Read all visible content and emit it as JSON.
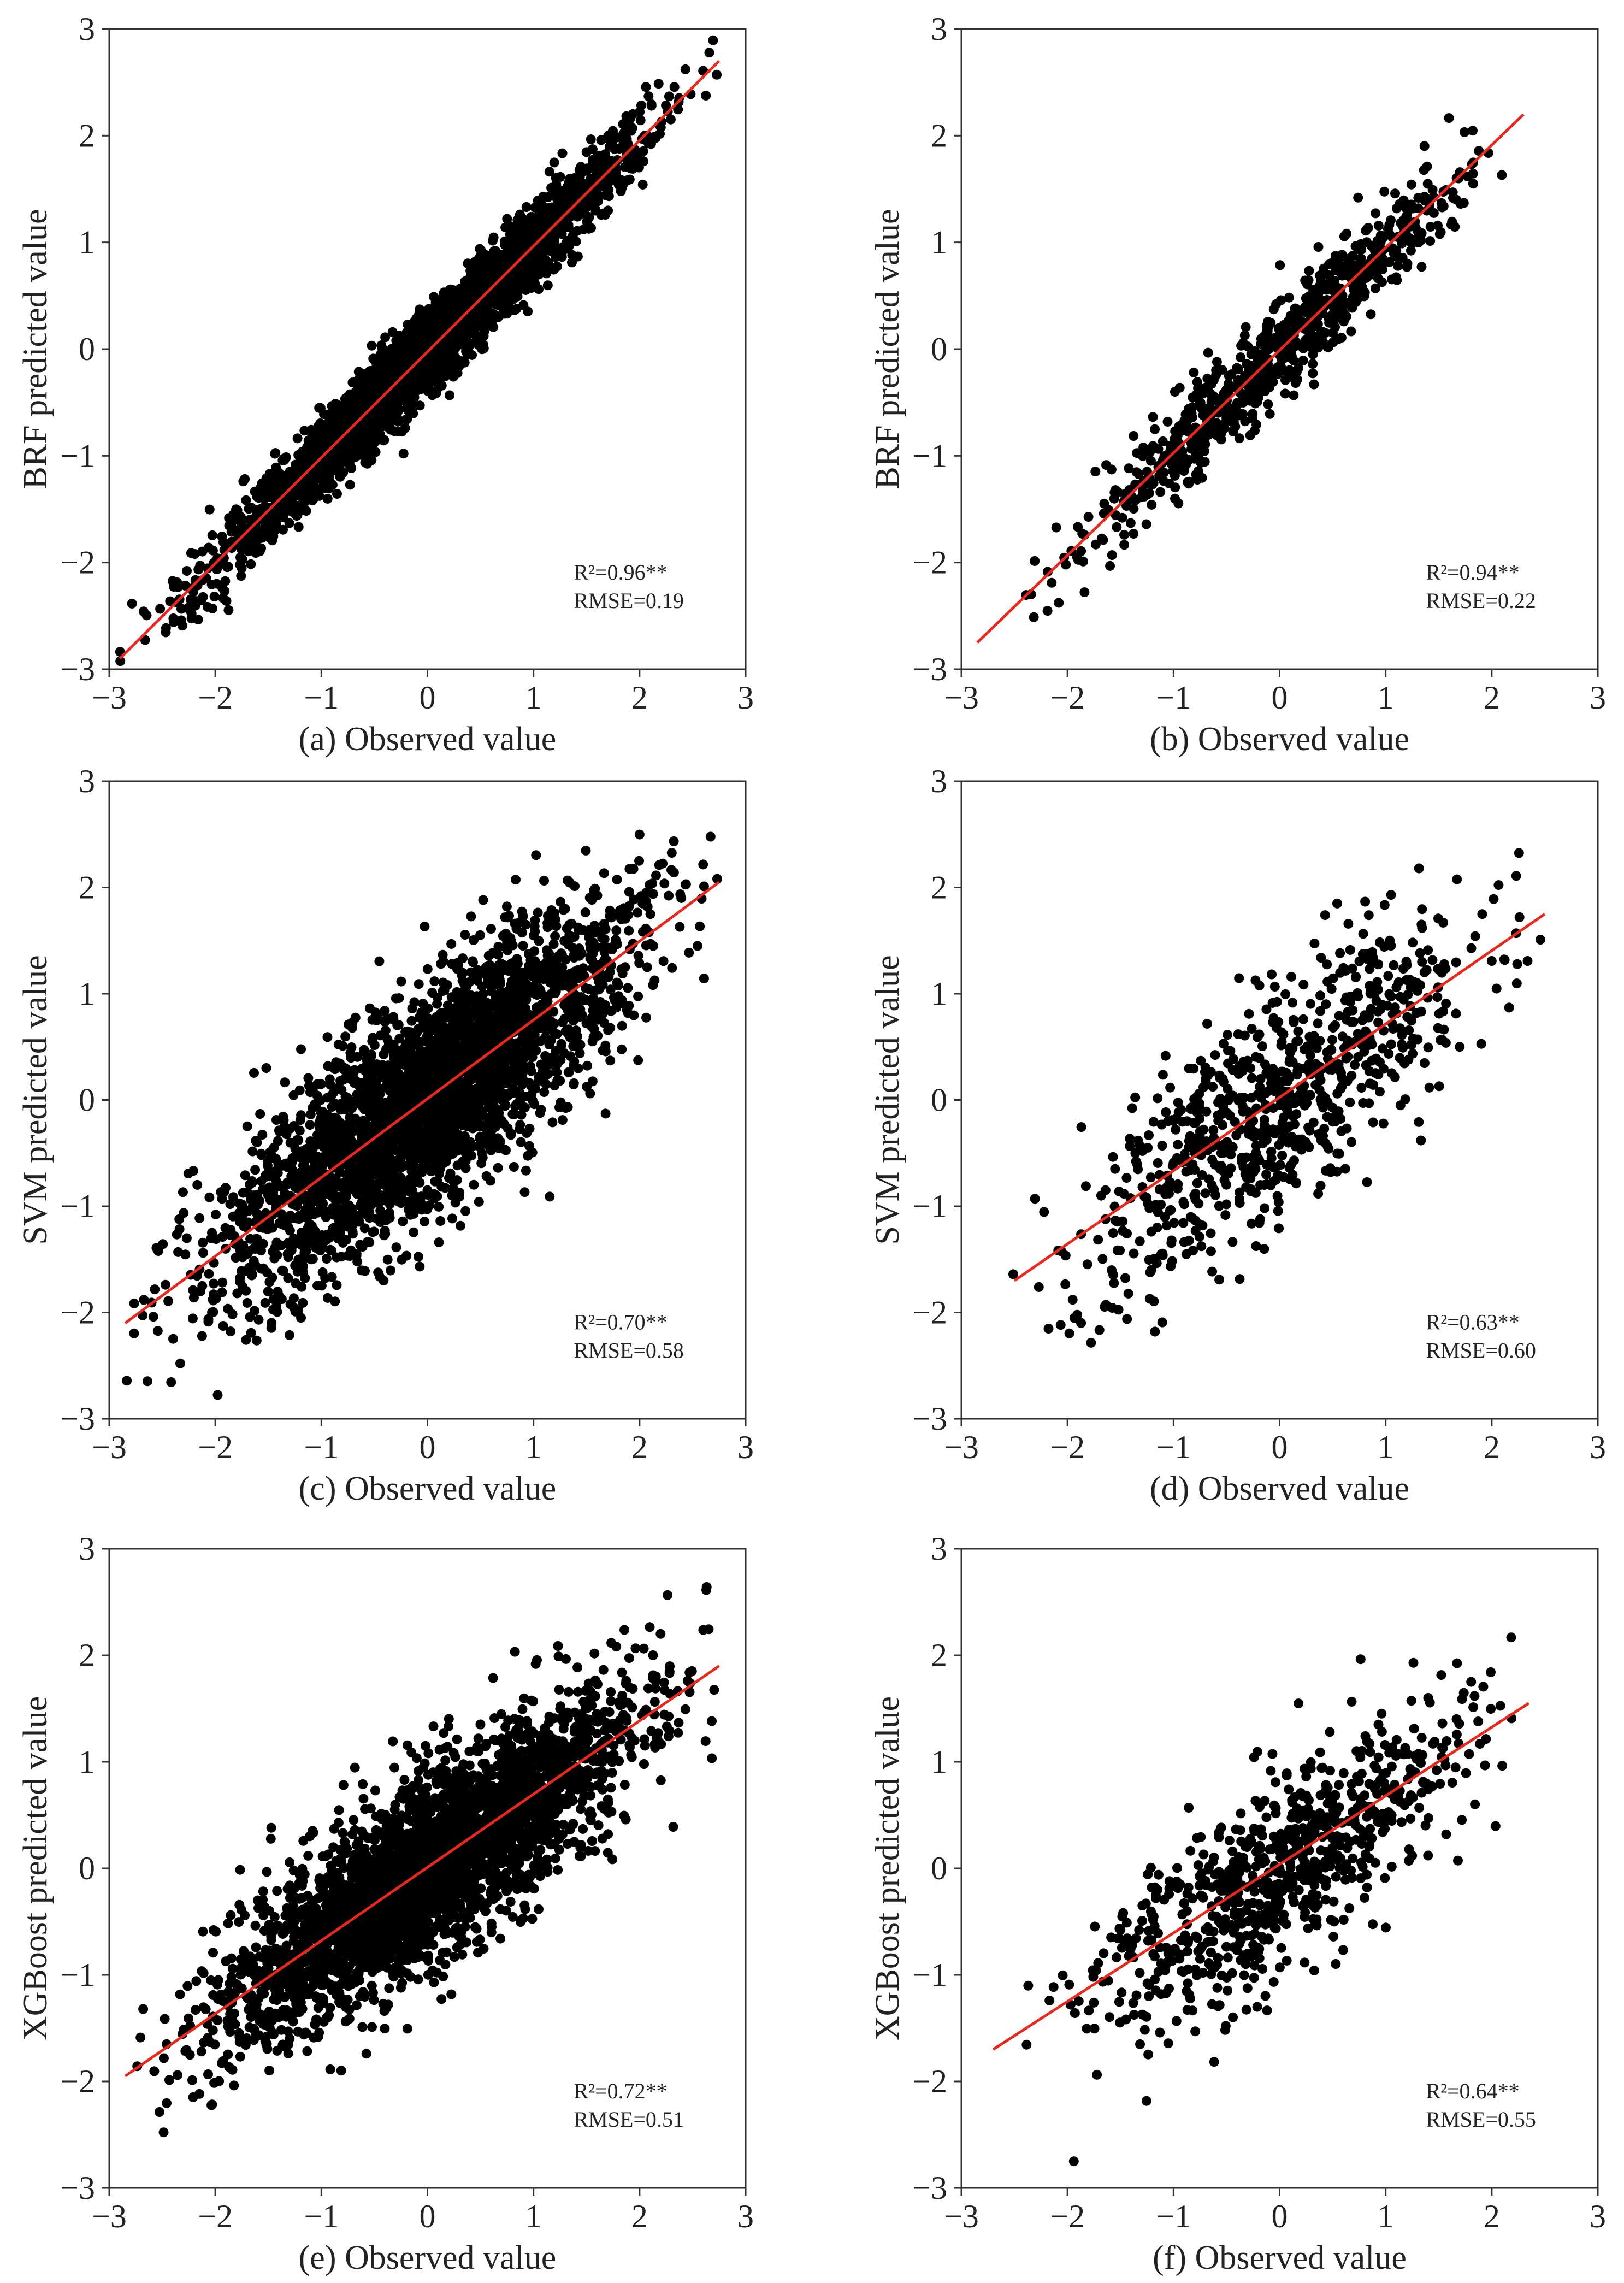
{
  "chart_data": [
    {
      "panel": "(a)",
      "type": "scatter",
      "xlabel": "Observed value",
      "ylabel": "BRF predicted value",
      "xlim": [
        -3,
        3
      ],
      "ylim": [
        -3,
        3
      ],
      "xticks": [
        "−3",
        "−2",
        "−1",
        "0",
        "1",
        "2",
        "3"
      ],
      "yticks": [
        "−3",
        "−2",
        "−1",
        "0",
        "1",
        "2",
        "3"
      ],
      "annotation": {
        "r2": "R²=0.96**",
        "rmse": "RMSE=0.19"
      },
      "fit_line": {
        "x": [
          -2.9,
          2.75
        ],
        "y": [
          -2.9,
          2.7
        ],
        "color": "#e8271d"
      },
      "sample": {
        "n": 3200,
        "xmin": -2.9,
        "xmax": 2.75,
        "mean": 0.0,
        "sd": 0.95,
        "slope": 0.99,
        "intercept": -0.02,
        "noise": 0.19
      },
      "marker_color": "#000000",
      "grid": false
    },
    {
      "panel": "(b)",
      "type": "scatter",
      "xlabel": "Observed value",
      "ylabel": "BRF predicted value",
      "xlim": [
        -3,
        3
      ],
      "ylim": [
        -3,
        3
      ],
      "xticks": [
        "−3",
        "−2",
        "−1",
        "0",
        "1",
        "2",
        "3"
      ],
      "yticks": [
        "−3",
        "−2",
        "−1",
        "0",
        "1",
        "2",
        "3"
      ],
      "annotation": {
        "r2": "R²=0.94**",
        "rmse": "RMSE=0.22"
      },
      "fit_line": {
        "x": [
          -2.85,
          2.3
        ],
        "y": [
          -2.75,
          2.2
        ],
        "color": "#e8271d"
      },
      "sample": {
        "n": 800,
        "xmin": -2.85,
        "xmax": 2.3,
        "mean": 0.0,
        "sd": 0.9,
        "slope": 0.96,
        "intercept": -0.02,
        "noise": 0.22
      },
      "marker_color": "#000000",
      "grid": false
    },
    {
      "panel": "(c)",
      "type": "scatter",
      "xlabel": "Observed value",
      "ylabel": "SVM predicted value",
      "xlim": [
        -3,
        3
      ],
      "ylim": [
        -3,
        3
      ],
      "xticks": [
        "−3",
        "−2",
        "−1",
        "0",
        "1",
        "2",
        "3"
      ],
      "yticks": [
        "−3",
        "−2",
        "−1",
        "0",
        "1",
        "2",
        "3"
      ],
      "annotation": {
        "r2": "R²=0.70**",
        "rmse": "RMSE=0.58"
      },
      "fit_line": {
        "x": [
          -2.85,
          2.75
        ],
        "y": [
          -2.1,
          2.05
        ],
        "color": "#e8271d"
      },
      "sample": {
        "n": 3200,
        "xmin": -2.9,
        "xmax": 2.75,
        "mean": 0.0,
        "sd": 0.95,
        "slope": 0.74,
        "intercept": 0.0,
        "noise": 0.5
      },
      "marker_color": "#000000",
      "grid": false
    },
    {
      "panel": "(d)",
      "type": "scatter",
      "xlabel": "Observed value",
      "ylabel": "SVM predicted value",
      "xlim": [
        -3,
        3
      ],
      "ylim": [
        -3,
        3
      ],
      "xticks": [
        "−3",
        "−2",
        "−1",
        "0",
        "1",
        "2",
        "3"
      ],
      "yticks": [
        "−3",
        "−2",
        "−1",
        "0",
        "1",
        "2",
        "3"
      ],
      "annotation": {
        "r2": "R²=0.63**",
        "rmse": "RMSE=0.60"
      },
      "fit_line": {
        "x": [
          -2.5,
          2.5
        ],
        "y": [
          -1.7,
          1.75
        ],
        "color": "#e8271d"
      },
      "sample": {
        "n": 800,
        "xmin": -2.55,
        "xmax": 2.5,
        "mean": 0.0,
        "sd": 0.9,
        "slope": 0.69,
        "intercept": 0.02,
        "noise": 0.52
      },
      "marker_color": "#000000",
      "grid": false
    },
    {
      "panel": "(e)",
      "type": "scatter",
      "xlabel": "Observed value",
      "ylabel": "XGBoost predicted value",
      "xlim": [
        -3,
        3
      ],
      "ylim": [
        -3,
        3
      ],
      "xticks": [
        "−3",
        "−2",
        "−1",
        "0",
        "1",
        "2",
        "3"
      ],
      "yticks": [
        "−3",
        "−2",
        "−1",
        "0",
        "1",
        "2",
        "3"
      ],
      "annotation": {
        "r2": "R²=0.72**",
        "rmse": "RMSE=0.51"
      },
      "fit_line": {
        "x": [
          -2.85,
          2.75
        ],
        "y": [
          -1.95,
          1.9
        ],
        "color": "#e8271d"
      },
      "sample": {
        "n": 3200,
        "xmin": -2.9,
        "xmax": 2.75,
        "mean": 0.0,
        "sd": 0.95,
        "slope": 0.69,
        "intercept": 0.0,
        "noise": 0.42
      },
      "marker_color": "#000000",
      "grid": false
    },
    {
      "panel": "(f)",
      "type": "scatter",
      "xlabel": "Observed value",
      "ylabel": "XGBoost predicted value",
      "xlim": [
        -3,
        3
      ],
      "ylim": [
        -3,
        3
      ],
      "xticks": [
        "−3",
        "−2",
        "−1",
        "0",
        "1",
        "2",
        "3"
      ],
      "yticks": [
        "−3",
        "−2",
        "−1",
        "0",
        "1",
        "2",
        "3"
      ],
      "annotation": {
        "r2": "R²=0.64**",
        "rmse": "RMSE=0.55"
      },
      "fit_line": {
        "x": [
          -2.7,
          2.35
        ],
        "y": [
          -1.7,
          1.55
        ],
        "color": "#e8271d"
      },
      "sample": {
        "n": 800,
        "xmin": -2.7,
        "xmax": 2.35,
        "mean": 0.0,
        "sd": 0.9,
        "slope": 0.65,
        "intercept": -0.05,
        "noise": 0.45
      },
      "marker_color": "#000000",
      "grid": false
    }
  ]
}
